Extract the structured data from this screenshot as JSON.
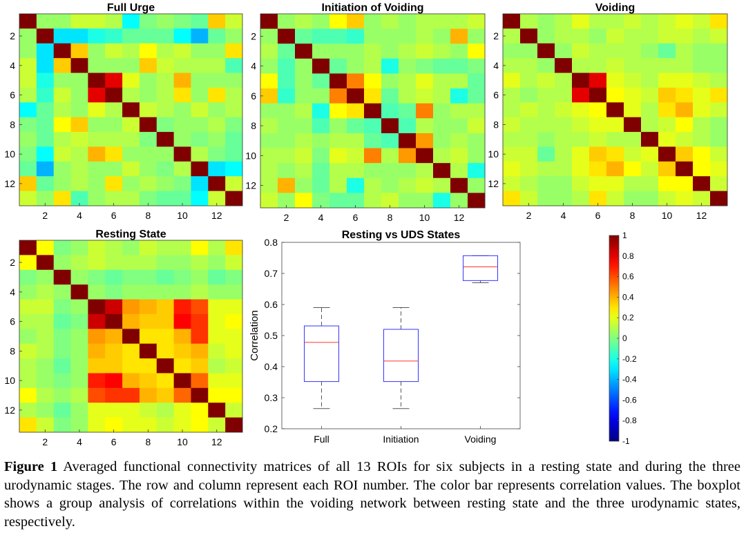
{
  "chart_data": [
    {
      "type": "heatmap",
      "title": "Full Urge",
      "rows": 13,
      "cols": 13,
      "xticks": [
        "2",
        "4",
        "6",
        "8",
        "10",
        "12"
      ],
      "yticks": [
        "2",
        "4",
        "6",
        "8",
        "10",
        "12"
      ],
      "values": [
        [
          1,
          0.05,
          0.05,
          0.15,
          0.15,
          0.1,
          -0.25,
          0,
          0.05,
          0,
          -0.05,
          0.35,
          0.15
        ],
        [
          0.05,
          1,
          -0.3,
          -0.3,
          -0.2,
          -0.15,
          -0.05,
          -0.05,
          -0.05,
          -0.25,
          -0.4,
          -0.05,
          0.05
        ],
        [
          0.05,
          -0.3,
          1,
          0.35,
          0.05,
          0.15,
          0.1,
          0.25,
          0.1,
          0.15,
          0.05,
          0.05,
          0.3
        ],
        [
          0.15,
          -0.3,
          0.35,
          1,
          0.05,
          0.05,
          0.05,
          0.35,
          0.15,
          0.1,
          0.1,
          0.1,
          -0.1
        ],
        [
          0.15,
          -0.2,
          0.05,
          0.05,
          1,
          0.8,
          0.2,
          0.05,
          0.1,
          0.4,
          0.05,
          0.05,
          0.05
        ],
        [
          0.1,
          -0.15,
          0.15,
          0.05,
          0.8,
          1,
          0.1,
          0.05,
          0.1,
          0.3,
          0.05,
          0.3,
          0.1
        ],
        [
          -0.25,
          -0.05,
          0.1,
          0.05,
          0.2,
          0.1,
          1,
          0.15,
          0.1,
          0.05,
          0.15,
          0.05,
          0.1
        ],
        [
          0,
          -0.05,
          0.25,
          0.35,
          0.05,
          0.05,
          0.15,
          1,
          0,
          0.05,
          0.05,
          0.1,
          0
        ],
        [
          0.05,
          -0.05,
          0.1,
          0.15,
          0.1,
          0.1,
          0.1,
          0,
          1,
          0.05,
          0,
          0.05,
          -0.05
        ],
        [
          0,
          -0.25,
          0.15,
          0.1,
          0.4,
          0.3,
          0.05,
          0.05,
          0.05,
          1,
          0.1,
          0,
          -0.05
        ],
        [
          -0.05,
          -0.4,
          0.05,
          0.1,
          0.05,
          0.05,
          0.15,
          0.05,
          0,
          0.1,
          1,
          -0.3,
          -0.25
        ],
        [
          0.35,
          -0.05,
          0.05,
          0.1,
          0.05,
          0.3,
          0.05,
          0.1,
          0.05,
          0,
          -0.3,
          1,
          0.15
        ],
        [
          0.15,
          0.05,
          0.3,
          -0.1,
          0.05,
          0.1,
          0.1,
          0,
          -0.05,
          -0.05,
          -0.25,
          0.15,
          1
        ]
      ]
    },
    {
      "type": "heatmap",
      "title": "Initiation of Voiding",
      "rows": 13,
      "cols": 13,
      "xticks": [
        "2",
        "4",
        "6",
        "8",
        "10",
        "12"
      ],
      "yticks": [
        "2",
        "4",
        "6",
        "8",
        "10",
        "12"
      ],
      "values": [
        [
          1,
          0.05,
          0.1,
          0.05,
          0.25,
          0.35,
          0.05,
          0.1,
          0.05,
          0.1,
          0.1,
          0.1,
          0.15
        ],
        [
          0.05,
          1,
          -0.05,
          -0.1,
          -0.1,
          -0.15,
          0.05,
          0.05,
          0.05,
          0.1,
          0.05,
          0.4,
          0.05
        ],
        [
          0.1,
          -0.05,
          1,
          0.05,
          0.05,
          0.05,
          0.1,
          0.05,
          0.1,
          0.15,
          0.1,
          0.05,
          0.25
        ],
        [
          0.05,
          -0.1,
          0.05,
          1,
          -0.05,
          0.05,
          0.1,
          -0.2,
          0.05,
          0,
          -0.05,
          -0.05,
          0
        ],
        [
          0.25,
          -0.1,
          0.05,
          -0.05,
          1,
          0.5,
          0.25,
          0.05,
          0.1,
          0.2,
          0.1,
          0.1,
          -0.05
        ],
        [
          0.35,
          -0.15,
          0.05,
          0.05,
          0.5,
          1,
          0.3,
          -0.05,
          0.1,
          0.15,
          0.1,
          -0.2,
          -0.05
        ],
        [
          0.05,
          0.05,
          0.1,
          -0.2,
          0.25,
          0.3,
          1,
          -0.1,
          -0.05,
          0.5,
          0.05,
          0.1,
          0.1
        ],
        [
          0.1,
          0.05,
          0.05,
          -0.1,
          0.05,
          -0.05,
          -0.1,
          1,
          -0.1,
          0.1,
          0.05,
          0.05,
          0.15
        ],
        [
          0.05,
          0.05,
          0.1,
          0.05,
          0.1,
          0.1,
          -0.05,
          -0.1,
          1,
          0.45,
          0.05,
          0.1,
          0.05
        ],
        [
          0.1,
          0.1,
          0.15,
          0,
          0.2,
          0.15,
          0.5,
          0.1,
          0.45,
          1,
          0.1,
          0.15,
          0.05
        ],
        [
          0.1,
          0.05,
          0.1,
          -0.05,
          0.1,
          0.1,
          0.05,
          0.05,
          0.05,
          0.1,
          1,
          0.1,
          -0.2
        ],
        [
          0.1,
          0.4,
          0.05,
          -0.05,
          0.1,
          -0.2,
          0.1,
          0.05,
          0.1,
          0.15,
          0.1,
          1,
          0.05
        ],
        [
          0.15,
          0.05,
          0.25,
          0,
          -0.05,
          -0.05,
          0.1,
          0.15,
          0.05,
          0.05,
          -0.2,
          0.05,
          1
        ]
      ]
    },
    {
      "type": "heatmap",
      "title": "Voiding",
      "rows": 13,
      "cols": 13,
      "xticks": [
        "2",
        "4",
        "6",
        "8",
        "10",
        "12"
      ],
      "yticks": [
        "2",
        "4",
        "6",
        "8",
        "10",
        "12"
      ],
      "values": [
        [
          1,
          0.1,
          0.05,
          0.1,
          0.2,
          0.1,
          0.1,
          0.15,
          0.1,
          0.15,
          0.2,
          0.15,
          0.3
        ],
        [
          0.1,
          1,
          0.05,
          0.1,
          0.1,
          0.05,
          0.15,
          0.1,
          0.1,
          0.15,
          0.15,
          0.1,
          0.15
        ],
        [
          0.05,
          0.05,
          1,
          0.05,
          0.15,
          0.1,
          0.1,
          0.1,
          0.05,
          -0.05,
          0.1,
          0.05,
          0.05
        ],
        [
          0.1,
          0.1,
          0.05,
          1,
          0.1,
          0.1,
          0.15,
          0.1,
          0.1,
          0.1,
          0.1,
          0.05,
          0.05
        ],
        [
          0.2,
          0.1,
          0.15,
          0.1,
          1,
          0.8,
          0.2,
          0.15,
          0.1,
          0.2,
          0.2,
          0.15,
          0.1
        ],
        [
          0.1,
          0.05,
          0.1,
          0.1,
          0.8,
          1,
          0.25,
          0.2,
          0.15,
          0.35,
          0.3,
          0.2,
          0.3
        ],
        [
          0.1,
          0.15,
          0.1,
          0.15,
          0.2,
          0.25,
          1,
          0.2,
          0.1,
          0.3,
          0.4,
          0.2,
          0.15
        ],
        [
          0.15,
          0.1,
          0.1,
          0.1,
          0.15,
          0.2,
          0.2,
          1,
          0.1,
          0.15,
          0.25,
          0.1,
          0.05
        ],
        [
          0.1,
          0.1,
          0.05,
          0.1,
          0.1,
          0.15,
          0.1,
          0.1,
          1,
          0.2,
          0.15,
          0.1,
          0.05
        ],
        [
          0.15,
          0.15,
          -0.05,
          0.1,
          0.2,
          0.35,
          0.3,
          0.15,
          0.2,
          1,
          0.35,
          0.25,
          0.15
        ],
        [
          0.2,
          0.15,
          0.1,
          0.1,
          0.2,
          0.3,
          0.4,
          0.25,
          0.15,
          0.35,
          1,
          0.25,
          0.2
        ],
        [
          0.15,
          0.1,
          0.05,
          0.05,
          0.15,
          0.2,
          0.2,
          0.1,
          0.1,
          0.25,
          0.25,
          1,
          0.15
        ],
        [
          0.3,
          0.15,
          0.05,
          0.05,
          0.1,
          0.3,
          0.15,
          0.05,
          0.05,
          0.15,
          0.2,
          0.15,
          1
        ]
      ]
    },
    {
      "type": "heatmap",
      "title": "Resting State",
      "rows": 13,
      "cols": 13,
      "xticks": [
        "2",
        "4",
        "6",
        "8",
        "10",
        "12"
      ],
      "yticks": [
        "2",
        "4",
        "6",
        "8",
        "10",
        "12"
      ],
      "values": [
        [
          1,
          0.25,
          0,
          0.05,
          0.15,
          0.1,
          0.05,
          0.15,
          0.1,
          0.1,
          0.25,
          0.1,
          0.3
        ],
        [
          0.25,
          1,
          0.05,
          0.1,
          0.15,
          0.1,
          0.1,
          0.1,
          0.05,
          0.05,
          0.1,
          0.05,
          0.15
        ],
        [
          0,
          0.05,
          1,
          0.05,
          0,
          -0.05,
          0,
          0,
          -0.05,
          0,
          0.05,
          -0.05,
          0
        ],
        [
          0.05,
          0.1,
          0.05,
          1,
          0.05,
          0,
          0.05,
          0.05,
          0.05,
          0.05,
          0.1,
          0.05,
          0.05
        ],
        [
          0.15,
          0.15,
          0,
          0.05,
          1,
          0.85,
          0.45,
          0.4,
          0.35,
          0.7,
          0.6,
          0.2,
          0.2
        ],
        [
          0.1,
          0.1,
          -0.05,
          0,
          0.85,
          1,
          0.4,
          0.35,
          0.35,
          0.75,
          0.65,
          0.2,
          0.25
        ],
        [
          0.05,
          0.1,
          0,
          0.05,
          0.45,
          0.4,
          1,
          0.3,
          0.3,
          0.4,
          0.65,
          0.2,
          0.2
        ],
        [
          0.15,
          0.1,
          0,
          0.05,
          0.4,
          0.35,
          0.3,
          1,
          0.3,
          0.35,
          0.4,
          0.15,
          0.2
        ],
        [
          0.1,
          0.05,
          -0.05,
          0.05,
          0.35,
          0.35,
          0.3,
          0.3,
          1,
          0.3,
          0.35,
          0.1,
          0.15
        ],
        [
          0.1,
          0.05,
          0,
          0.05,
          0.7,
          0.75,
          0.4,
          0.35,
          0.3,
          1,
          0.55,
          0.2,
          0.2
        ],
        [
          0.25,
          0.1,
          0.05,
          0.1,
          0.6,
          0.65,
          0.65,
          0.4,
          0.35,
          0.55,
          1,
          0.25,
          0.25
        ],
        [
          0.1,
          0.05,
          -0.05,
          0.05,
          0.2,
          0.2,
          0.2,
          0.15,
          0.1,
          0.2,
          0.25,
          1,
          0.15
        ],
        [
          0.3,
          0.15,
          0,
          0.05,
          0.2,
          0.25,
          0.2,
          0.2,
          0.15,
          0.2,
          0.25,
          0.15,
          1
        ]
      ]
    },
    {
      "type": "boxplot",
      "title": "Resting vs UDS States",
      "xlabel": "",
      "ylabel": "Correlation",
      "ylim": [
        0.2,
        0.8
      ],
      "yticks": [
        "0.2",
        "0.3",
        "0.4",
        "0.5",
        "0.6",
        "0.7",
        "0.8"
      ],
      "categories": [
        "Full",
        "Initiation",
        "Voiding"
      ],
      "boxes": [
        {
          "min": 0.265,
          "q1": 0.352,
          "median": 0.478,
          "q3": 0.531,
          "max": 0.59
        },
        {
          "min": 0.265,
          "q1": 0.352,
          "median": 0.418,
          "q3": 0.52,
          "max": 0.59
        },
        {
          "min": 0.67,
          "q1": 0.677,
          "median": 0.721,
          "q3": 0.757,
          "max": 0.757
        }
      ],
      "colors": {
        "box": "#3333ff",
        "median": "#ff3333",
        "whisker": "#555555"
      }
    },
    {
      "type": "colorbar",
      "range": [
        -1,
        1
      ],
      "ticks": [
        "1",
        "0.8",
        "0.6",
        "0.4",
        "0.2",
        "0",
        "-0.2",
        "-0.4",
        "-0.6",
        "-0.8",
        "-1"
      ],
      "colormap": "jet"
    }
  ],
  "caption": {
    "label": "Figure 1",
    "text": "Averaged functional connectivity matrices of all 13 ROIs for six subjects in a resting state and during the three urodynamic stages. The row and column represent each ROI number. The color bar represents correlation values. The boxplot shows a group analysis of correlations within the voiding network between resting state and the three urodynamic states, respectively."
  }
}
